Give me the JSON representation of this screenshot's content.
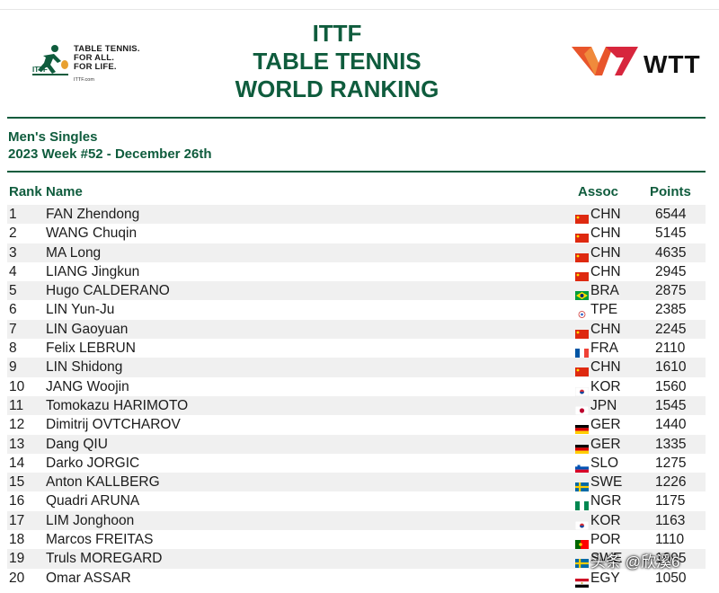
{
  "header": {
    "ittf_logo_lines": [
      "TABLE TENNIS.",
      "FOR ALL.",
      "FOR LIFE."
    ],
    "ittf_logo_url": "ITTF.com",
    "title_lines": [
      "ITTF",
      "TABLE TENNIS",
      "WORLD RANKING"
    ],
    "wtt_logo_text": "WTT"
  },
  "subheading": {
    "event": "Men's Singles",
    "week": "2023 Week #52 - December 26th"
  },
  "table": {
    "columns": {
      "rank": "Rank",
      "name": "Name",
      "assoc": "Assoc",
      "points": "Points"
    },
    "rows": [
      {
        "rank": "1",
        "name": "FAN Zhendong",
        "assoc": "CHN",
        "points": "6544",
        "flag": "cn"
      },
      {
        "rank": "2",
        "name": "WANG Chuqin",
        "assoc": "CHN",
        "points": "5145",
        "flag": "cn"
      },
      {
        "rank": "3",
        "name": "MA Long",
        "assoc": "CHN",
        "points": "4635",
        "flag": "cn"
      },
      {
        "rank": "4",
        "name": "LIANG Jingkun",
        "assoc": "CHN",
        "points": "2945",
        "flag": "cn"
      },
      {
        "rank": "5",
        "name": "Hugo CALDERANO",
        "assoc": "BRA",
        "points": "2875",
        "flag": "br"
      },
      {
        "rank": "6",
        "name": "LIN Yun-Ju",
        "assoc": "TPE",
        "points": "2385",
        "flag": "tpe"
      },
      {
        "rank": "7",
        "name": "LIN Gaoyuan",
        "assoc": "CHN",
        "points": "2245",
        "flag": "cn"
      },
      {
        "rank": "8",
        "name": "Felix LEBRUN",
        "assoc": "FRA",
        "points": "2110",
        "flag": "fr"
      },
      {
        "rank": "9",
        "name": "LIN Shidong",
        "assoc": "CHN",
        "points": "1610",
        "flag": "cn"
      },
      {
        "rank": "10",
        "name": "JANG Woojin",
        "assoc": "KOR",
        "points": "1560",
        "flag": "kr"
      },
      {
        "rank": "11",
        "name": "Tomokazu HARIMOTO",
        "assoc": "JPN",
        "points": "1545",
        "flag": "jp"
      },
      {
        "rank": "12",
        "name": "Dimitrij OVTCHAROV",
        "assoc": "GER",
        "points": "1440",
        "flag": "de"
      },
      {
        "rank": "13",
        "name": "Dang QIU",
        "assoc": "GER",
        "points": "1335",
        "flag": "de"
      },
      {
        "rank": "14",
        "name": "Darko JORGIC",
        "assoc": "SLO",
        "points": "1275",
        "flag": "si"
      },
      {
        "rank": "15",
        "name": "Anton KALLBERG",
        "assoc": "SWE",
        "points": "1226",
        "flag": "se"
      },
      {
        "rank": "16",
        "name": "Quadri ARUNA",
        "assoc": "NGR",
        "points": "1175",
        "flag": "ng"
      },
      {
        "rank": "17",
        "name": "LIM Jonghoon",
        "assoc": "KOR",
        "points": "1163",
        "flag": "kr"
      },
      {
        "rank": "18",
        "name": "Marcos FREITAS",
        "assoc": "POR",
        "points": "1110",
        "flag": "pt"
      },
      {
        "rank": "19",
        "name": "Truls MOREGARD",
        "assoc": "SWE",
        "points": "1095",
        "flag": "se"
      },
      {
        "rank": "20",
        "name": "Omar ASSAR",
        "assoc": "EGY",
        "points": "1050",
        "flag": "eg"
      }
    ]
  },
  "watermark": "头条 @欣溪6",
  "colors": {
    "brand_green": "#0f5c3d",
    "row_alt": "#f0f0f0",
    "wtt_orange": "#e8552b",
    "wtt_red": "#d7263d"
  }
}
